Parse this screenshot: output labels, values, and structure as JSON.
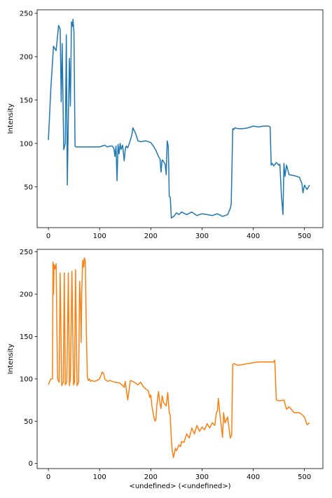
{
  "chart_data": [
    {
      "type": "line",
      "title": "",
      "xlabel": "",
      "ylabel": "Intensity",
      "xlim": [
        -22,
        536
      ],
      "ylim": [
        3,
        254
      ],
      "xticks": [
        0,
        100,
        200,
        300,
        400,
        500
      ],
      "yticks": [
        50,
        100,
        150,
        200,
        250
      ],
      "grid": false,
      "series": [
        {
          "color": "#1f77b4",
          "x": [
            0,
            5,
            10,
            12,
            15,
            20,
            23,
            25,
            27,
            30,
            33,
            35,
            37,
            39,
            41,
            43,
            45,
            47,
            48,
            50,
            52,
            54,
            56,
            58,
            60,
            80,
            100,
            105,
            110,
            115,
            120,
            125,
            128,
            130,
            132,
            134,
            136,
            138,
            140,
            142,
            145,
            148,
            150,
            152,
            155,
            158,
            160,
            163,
            165,
            170,
            175,
            180,
            190,
            200,
            205,
            210,
            215,
            218,
            220,
            222,
            224,
            226,
            228,
            230,
            232,
            234,
            235,
            236,
            238,
            240,
            242,
            245,
            250,
            255,
            260,
            270,
            280,
            290,
            300,
            310,
            320,
            330,
            340,
            350,
            355,
            357,
            360,
            362,
            364,
            370,
            380,
            390,
            400,
            410,
            420,
            430,
            433,
            435,
            437,
            440,
            445,
            450,
            452,
            455,
            458,
            460,
            462,
            465,
            470,
            480,
            490,
            495,
            497,
            500,
            505,
            510
          ],
          "values": [
            104,
            165,
            212,
            210,
            207,
            236,
            232,
            148,
            215,
            93,
            100,
            225,
            52,
            130,
            198,
            143,
            240,
            235,
            243,
            228,
            97,
            96,
            96,
            96,
            96,
            96,
            96,
            97,
            98,
            96,
            97,
            97,
            94,
            85,
            97,
            57,
            99,
            88,
            100,
            93,
            98,
            80,
            93,
            97,
            95,
            100,
            104,
            110,
            118,
            112,
            103,
            102,
            103,
            101,
            97,
            92,
            85,
            82,
            67,
            81,
            80,
            78,
            76,
            64,
            103,
            97,
            75,
            39,
            38,
            14,
            15,
            16,
            20,
            18,
            21,
            18,
            21,
            17,
            19,
            18,
            17,
            19,
            16,
            18,
            25,
            30,
            117,
            116,
            118,
            117,
            117,
            118,
            120,
            119,
            120,
            120,
            119,
            75,
            77,
            74,
            78,
            75,
            76,
            40,
            18,
            77,
            62,
            75,
            64,
            63,
            61,
            54,
            43,
            52,
            47,
            52
          ]
        }
      ]
    },
    {
      "type": "line",
      "title": "",
      "xlabel": "<undefined> (<undefined>)",
      "ylabel": "Intensity",
      "xlim": [
        -22,
        536
      ],
      "ylim": [
        -6,
        253
      ],
      "xticks": [
        0,
        100,
        200,
        300,
        400,
        500
      ],
      "yticks": [
        0,
        50,
        100,
        150,
        200,
        250
      ],
      "grid": false,
      "series": [
        {
          "color": "#ff7f0e",
          "x": [
            0,
            2,
            5,
            8,
            9,
            10,
            11,
            13,
            15,
            18,
            21,
            23,
            26,
            29,
            31,
            33,
            36,
            39,
            41,
            43,
            46,
            49,
            51,
            53,
            56,
            59,
            61,
            63,
            64,
            65,
            67,
            69,
            70,
            72,
            74,
            76,
            78,
            80,
            82,
            85,
            90,
            95,
            100,
            105,
            108,
            110,
            115,
            120,
            130,
            140,
            145,
            148,
            150,
            155,
            160,
            165,
            170,
            175,
            180,
            185,
            190,
            195,
            198,
            200,
            202,
            204,
            206,
            208,
            210,
            212,
            215,
            218,
            220,
            222,
            225,
            230,
            233,
            236,
            238,
            240,
            242,
            244,
            246,
            248,
            250,
            255,
            258,
            260,
            265,
            270,
            275,
            280,
            285,
            290,
            295,
            300,
            305,
            310,
            315,
            320,
            325,
            328,
            330,
            332,
            335,
            338,
            340,
            342,
            345,
            350,
            355,
            358,
            360,
            362,
            370,
            380,
            390,
            400,
            410,
            420,
            430,
            440,
            442,
            445,
            450,
            460,
            465,
            470,
            480,
            490,
            495,
            500,
            505,
            510
          ],
          "values": [
            93,
            96,
            100,
            100,
            238,
            200,
            235,
            230,
            236,
            100,
            96,
            225,
            92,
            96,
            225,
            93,
            96,
            225,
            92,
            100,
            227,
            93,
            96,
            229,
            92,
            96,
            215,
            180,
            143,
            200,
            240,
            232,
            243,
            240,
            160,
            102,
            98,
            100,
            97,
            98,
            97,
            98,
            100,
            108,
            106,
            100,
            97,
            98,
            96,
            95,
            92,
            90,
            97,
            75,
            98,
            97,
            95,
            93,
            96,
            91,
            88,
            86,
            78,
            81,
            68,
            62,
            55,
            50,
            52,
            70,
            85,
            70,
            65,
            80,
            72,
            68,
            84,
            60,
            57,
            28,
            15,
            7,
            12,
            18,
            15,
            22,
            20,
            26,
            25,
            35,
            30,
            42,
            35,
            45,
            38,
            43,
            40,
            47,
            42,
            48,
            45,
            60,
            62,
            77,
            58,
            42,
            31,
            60,
            48,
            55,
            30,
            34,
            117,
            118,
            116,
            117,
            118,
            119,
            120,
            120,
            120,
            120,
            122,
            75,
            74,
            75,
            64,
            67,
            60,
            60,
            58,
            55,
            46,
            48
          ]
        }
      ]
    }
  ]
}
